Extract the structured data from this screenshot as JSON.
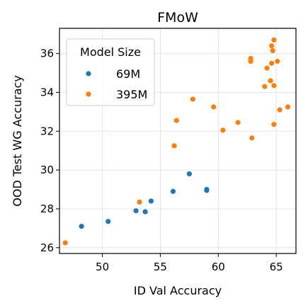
{
  "chart_data": {
    "type": "scatter",
    "title": "FMoW",
    "xlabel": "ID Val Accuracy",
    "ylabel": "OOD Test WG Accuracy",
    "xlim": [
      46.3,
      66.7
    ],
    "ylim": [
      25.7,
      37.3
    ],
    "xticks": [
      50,
      55,
      60,
      65
    ],
    "yticks": [
      26,
      28,
      30,
      32,
      34,
      36
    ],
    "grid": true,
    "legend": {
      "title": "Model Size",
      "placement": "top-left"
    },
    "series": [
      {
        "name": "69M",
        "color": "#1f77b4",
        "points": [
          [
            48.2,
            27.1
          ],
          [
            50.5,
            27.35
          ],
          [
            52.9,
            27.9
          ],
          [
            53.7,
            27.85
          ],
          [
            54.2,
            28.4
          ],
          [
            56.1,
            28.9
          ],
          [
            57.5,
            29.8
          ],
          [
            59.0,
            29.0
          ],
          [
            59.0,
            28.95
          ]
        ]
      },
      {
        "name": "395M",
        "color": "#ff7f0e",
        "points": [
          [
            46.8,
            26.25
          ],
          [
            53.2,
            28.35
          ],
          [
            56.2,
            31.25
          ],
          [
            56.4,
            32.55
          ],
          [
            57.8,
            33.65
          ],
          [
            59.6,
            33.25
          ],
          [
            60.4,
            32.05
          ],
          [
            61.7,
            32.45
          ],
          [
            62.8,
            35.75
          ],
          [
            62.8,
            35.6
          ],
          [
            62.9,
            31.65
          ],
          [
            64.0,
            34.3
          ],
          [
            64.2,
            35.25
          ],
          [
            64.5,
            34.6
          ],
          [
            64.6,
            36.4
          ],
          [
            64.6,
            35.5
          ],
          [
            64.7,
            36.15
          ],
          [
            64.8,
            36.7
          ],
          [
            64.8,
            34.35
          ],
          [
            64.8,
            32.35
          ],
          [
            65.1,
            35.6
          ],
          [
            65.3,
            33.1
          ],
          [
            66.0,
            33.25
          ]
        ]
      }
    ]
  }
}
